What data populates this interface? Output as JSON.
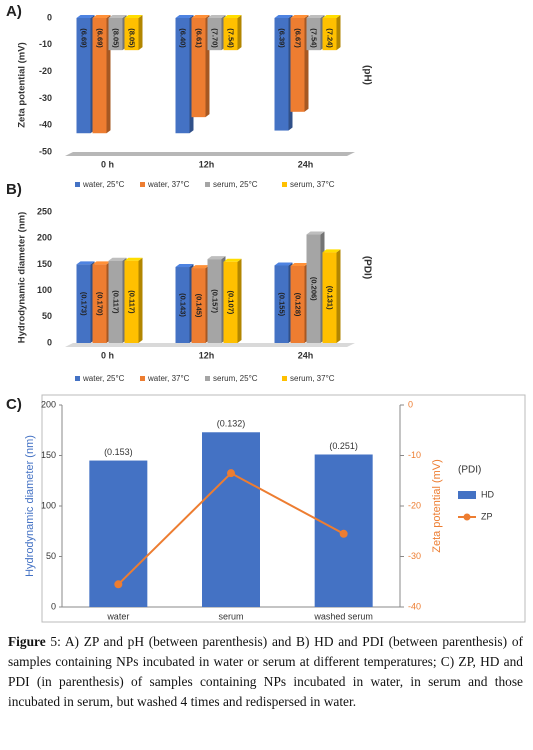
{
  "chart_data": [
    {
      "type": "bar3d",
      "panel": "A)",
      "ylabel": "Zeta potential (mV)",
      "right_label": "(pH)",
      "categories": [
        "0 h",
        "12h",
        "24h"
      ],
      "ylim": [
        -50,
        0
      ],
      "yticks": [
        0,
        -10,
        -20,
        -30,
        -40,
        -50
      ],
      "grid": false,
      "series": [
        {
          "name": "water, 25°C",
          "color": "#4472c4",
          "values": [
            -43,
            -43,
            -42
          ],
          "labels": [
            "(6.69)",
            "(6.40)",
            "(6.39)"
          ]
        },
        {
          "name": "water, 37°C",
          "color": "#ed7d31",
          "values": [
            -43,
            -37,
            -35
          ],
          "labels": [
            "(6.69)",
            "(6.61)",
            "(6.67)"
          ]
        },
        {
          "name": "serum, 25°C",
          "color": "#a5a5a5",
          "values": [
            -12,
            -12,
            -12
          ],
          "labels": [
            "(8.05)",
            "(7.70)",
            "(7.54)"
          ]
        },
        {
          "name": "serum, 37°C",
          "color": "#ffc000",
          "values": [
            -12,
            -12,
            -12
          ],
          "labels": [
            "(8.05)",
            "(7.54)",
            "(7.24)"
          ]
        }
      ]
    },
    {
      "type": "bar3d",
      "panel": "B)",
      "ylabel": "Hydrodynamic diameter (nm)",
      "right_label": "(PDI)",
      "categories": [
        "0 h",
        "12h",
        "24h"
      ],
      "ylim": [
        0,
        250
      ],
      "yticks": [
        0,
        50,
        100,
        150,
        200,
        250
      ],
      "grid": false,
      "series": [
        {
          "name": "water, 25°C",
          "color": "#4472c4",
          "values": [
            150,
            145,
            148
          ],
          "labels": [
            "(0.173)",
            "(0.143)",
            "(0.155)"
          ]
        },
        {
          "name": "water, 37°C",
          "color": "#ed7d31",
          "values": [
            150,
            143,
            147
          ],
          "labels": [
            "(0.170)",
            "(0.145)",
            "(0.128)"
          ]
        },
        {
          "name": "serum, 25°C",
          "color": "#a5a5a5",
          "values": [
            157,
            160,
            207
          ],
          "labels": [
            "(0.117)",
            "(0.157)",
            "(0.206)"
          ]
        },
        {
          "name": "serum, 37°C",
          "color": "#ffc000",
          "values": [
            157,
            155,
            173
          ],
          "labels": [
            "(0.117)",
            "(0.107)",
            "(0.131)"
          ]
        }
      ]
    },
    {
      "type": "combo",
      "panel": "C)",
      "ylabel": "Hydrodynamic diameter (nm)",
      "y2label": "Zeta potential (mV)",
      "legend_title": "(PDI)",
      "categories": [
        "water",
        "serum",
        "washed serum"
      ],
      "ylim": [
        0,
        200
      ],
      "yticks": [
        0,
        50,
        100,
        150,
        200
      ],
      "y2lim": [
        -40,
        0
      ],
      "y2ticks": [
        0,
        -10,
        -20,
        -30,
        -40
      ],
      "grid": false,
      "series": [
        {
          "name": "HD",
          "type": "bar",
          "color": "#4472c4",
          "values": [
            145,
            173,
            151
          ],
          "labels": [
            "(0.153)",
            "(0.132)",
            "(0.251)"
          ]
        },
        {
          "name": "ZP",
          "type": "line",
          "axis": "y2",
          "color": "#ed7d31",
          "values": [
            -35.5,
            -13.5,
            -25.5
          ]
        }
      ]
    }
  ],
  "caption": {
    "label": "Figure",
    "text": "5: A) ZP and pH (between parenthesis) and B) HD and PDI (between parenthesis) of samples containing NPs incubated in water or serum at different temperatures; C) ZP, HD and PDI (in parenthesis) of samples containing NPs incubated in water, in serum and those incubated in serum, but washed 4 times and redispersed in water."
  }
}
